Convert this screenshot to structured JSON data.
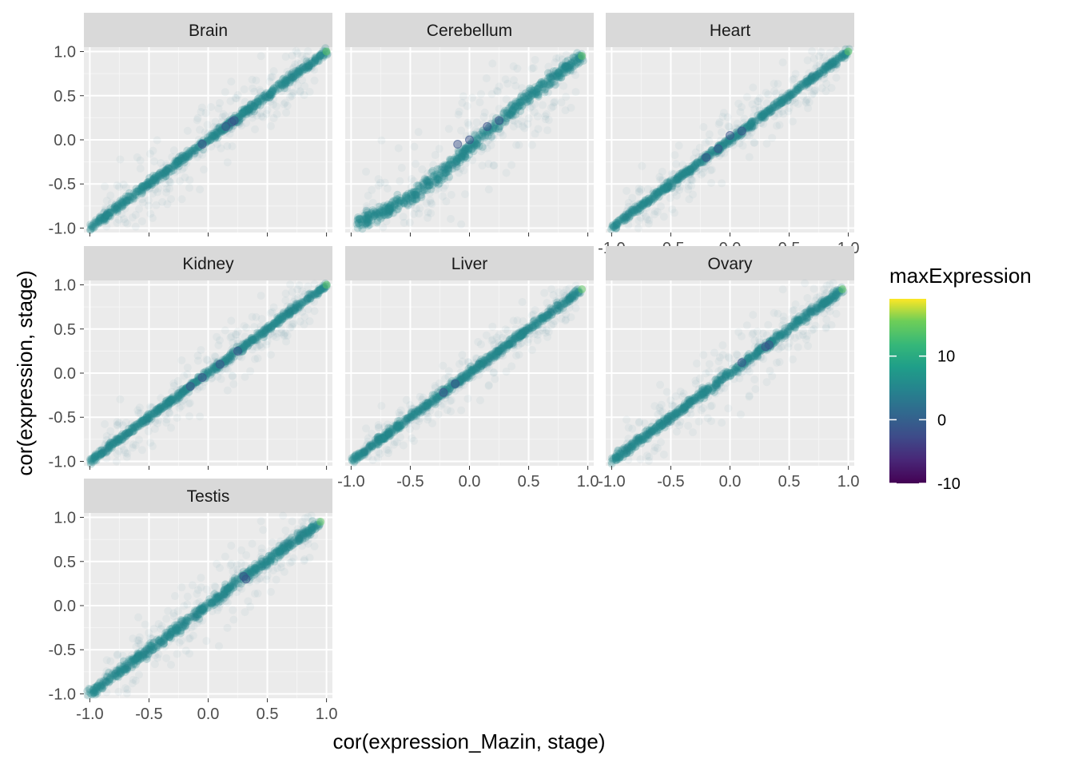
{
  "chart_data": {
    "type": "scatter",
    "facets": [
      "Brain",
      "Cerebellum",
      "Heart",
      "Kidney",
      "Liver",
      "Ovary",
      "Testis"
    ],
    "xlabel": "cor(expression_Mazin, stage)",
    "ylabel": "cor(expression, stage)",
    "xlim": [
      -1.05,
      1.05
    ],
    "ylim": [
      -1.05,
      1.05
    ],
    "x_ticks": [
      -1.0,
      -0.5,
      0.0,
      0.5,
      1.0
    ],
    "y_ticks": [
      -1.0,
      -0.5,
      0.0,
      0.5,
      1.0
    ],
    "x_tick_labels": [
      "-1.0",
      "-0.5",
      "0.0",
      "0.5",
      "1.0"
    ],
    "y_tick_labels": [
      "-1.0",
      "-0.5",
      "0.0",
      "0.5",
      "1.0"
    ],
    "grid": true,
    "color_legend": {
      "title": "maxExpression",
      "scale": "viridis",
      "range": [
        -10,
        19
      ],
      "ticks": [
        -10,
        0,
        10
      ],
      "tick_labels": [
        "-10",
        "0",
        "10"
      ],
      "placement": "right"
    },
    "series": [
      {
        "facet": "Brain",
        "points": [
          [
            -1.0,
            -1.0
          ],
          [
            -0.75,
            -0.75
          ],
          [
            -0.5,
            -0.5
          ],
          [
            -0.25,
            -0.25
          ],
          [
            0.0,
            0.0
          ],
          [
            0.15,
            0.15
          ],
          [
            0.2,
            0.2
          ],
          [
            0.25,
            0.25
          ],
          [
            0.5,
            0.5
          ],
          [
            0.75,
            0.75
          ],
          [
            1.0,
            1.0
          ]
        ],
        "highlights": [
          [
            0.15,
            0.15
          ],
          [
            0.2,
            0.2
          ],
          [
            0.22,
            0.22
          ],
          [
            -0.05,
            -0.05
          ]
        ],
        "spread": 0.07,
        "cloud": 0.35
      },
      {
        "facet": "Cerebellum",
        "points": [
          [
            -0.95,
            -0.95
          ],
          [
            -0.7,
            -0.8
          ],
          [
            -0.5,
            -0.65
          ],
          [
            -0.25,
            -0.4
          ],
          [
            0.0,
            -0.1
          ],
          [
            0.25,
            0.2
          ],
          [
            0.5,
            0.5
          ],
          [
            0.75,
            0.75
          ],
          [
            0.95,
            0.95
          ]
        ],
        "highlights": [
          [
            0.0,
            0.0
          ],
          [
            0.15,
            0.15
          ],
          [
            0.25,
            0.22
          ],
          [
            -0.1,
            -0.05
          ]
        ],
        "spread": 0.12,
        "cloud": 0.55
      },
      {
        "facet": "Heart",
        "points": [
          [
            -1.0,
            -1.0
          ],
          [
            -0.5,
            -0.5
          ],
          [
            -0.2,
            -0.2
          ],
          [
            0.0,
            0.0
          ],
          [
            0.2,
            0.2
          ],
          [
            0.5,
            0.5
          ],
          [
            1.0,
            1.0
          ]
        ],
        "highlights": [
          [
            -0.2,
            -0.2
          ],
          [
            -0.1,
            -0.1
          ],
          [
            0.0,
            0.05
          ],
          [
            0.1,
            0.1
          ]
        ],
        "spread": 0.06,
        "cloud": 0.3
      },
      {
        "facet": "Kidney",
        "points": [
          [
            -1.0,
            -1.0
          ],
          [
            -0.5,
            -0.5
          ],
          [
            -0.15,
            -0.15
          ],
          [
            0.0,
            0.0
          ],
          [
            0.25,
            0.25
          ],
          [
            0.5,
            0.5
          ],
          [
            1.0,
            1.0
          ]
        ],
        "highlights": [
          [
            -0.15,
            -0.15
          ],
          [
            -0.05,
            -0.05
          ],
          [
            0.25,
            0.25
          ],
          [
            0.1,
            0.1
          ]
        ],
        "spread": 0.06,
        "cloud": 0.3
      },
      {
        "facet": "Liver",
        "points": [
          [
            -1.0,
            -1.0
          ],
          [
            -0.5,
            -0.5
          ],
          [
            -0.2,
            -0.2
          ],
          [
            0.0,
            0.0
          ],
          [
            0.5,
            0.5
          ],
          [
            0.95,
            0.95
          ]
        ],
        "highlights": [
          [
            -0.22,
            -0.22
          ],
          [
            -0.12,
            -0.12
          ]
        ],
        "spread": 0.07,
        "cloud": 0.25
      },
      {
        "facet": "Ovary",
        "points": [
          [
            -1.0,
            -1.0
          ],
          [
            -0.5,
            -0.5
          ],
          [
            0.0,
            0.0
          ],
          [
            0.3,
            0.3
          ],
          [
            0.5,
            0.5
          ],
          [
            0.95,
            0.95
          ]
        ],
        "highlights": [
          [
            0.1,
            0.12
          ],
          [
            0.3,
            0.3
          ],
          [
            0.33,
            0.32
          ]
        ],
        "spread": 0.08,
        "cloud": 0.35
      },
      {
        "facet": "Testis",
        "points": [
          [
            -1.0,
            -1.0
          ],
          [
            -0.5,
            -0.5
          ],
          [
            0.0,
            0.0
          ],
          [
            0.3,
            0.33
          ],
          [
            0.5,
            0.5
          ],
          [
            0.95,
            0.95
          ]
        ],
        "highlights": [
          [
            0.3,
            0.33
          ],
          [
            0.32,
            0.3
          ]
        ],
        "spread": 0.09,
        "cloud": 0.35
      }
    ]
  }
}
